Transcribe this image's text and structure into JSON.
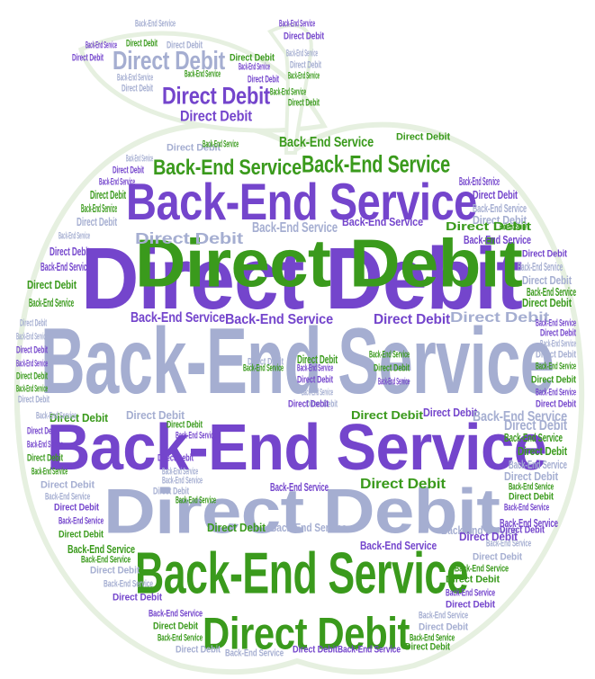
{
  "phrases": {
    "direct_debit": "Direct Debit",
    "back_end_service": "Back-End Service"
  },
  "colors": {
    "purple": "#7445cc",
    "green": "#3a9a1c",
    "steel": "#a5aed1",
    "apple_outline": "#e6f0e0"
  },
  "words": [
    {
      "t": "direct_debit",
      "c": "purple"
    },
    {
      "t": "back_end_service",
      "c": "purple"
    },
    {
      "t": "direct_debit",
      "c": "green"
    },
    {
      "t": "back_end_service",
      "c": "steel"
    },
    {
      "t": "direct_debit",
      "c": "steel"
    },
    {
      "t": "back_end_service",
      "c": "green"
    },
    {
      "t": "direct_debit",
      "c": "green"
    },
    {
      "t": "back_end_service",
      "c": "purple"
    },
    {
      "t": "direct_debit",
      "c": "purple"
    },
    {
      "t": "back_end_service",
      "c": "green"
    },
    {
      "t": "direct_debit",
      "c": "steel"
    },
    {
      "t": "back_end_service",
      "c": "green"
    },
    {
      "t": "direct_debit",
      "c": "purple"
    },
    {
      "t": "back_end_service",
      "c": "steel"
    },
    {
      "t": "direct_debit",
      "c": "green"
    },
    {
      "t": "back_end_service",
      "c": "purple"
    },
    {
      "t": "direct_debit",
      "c": "steel"
    },
    {
      "t": "back_end_service",
      "c": "purple"
    },
    {
      "t": "direct_debit",
      "c": "green"
    },
    {
      "t": "back_end_service",
      "c": "green"
    },
    {
      "t": "direct_debit",
      "c": "purple"
    },
    {
      "t": "back_end_service",
      "c": "steel"
    },
    {
      "t": "direct_debit",
      "c": "steel"
    },
    {
      "t": "back_end_service",
      "c": "purple"
    },
    {
      "t": "direct_debit",
      "c": "green"
    },
    {
      "t": "back_end_service",
      "c": "steel"
    },
    {
      "t": "direct_debit",
      "c": "purple"
    },
    {
      "t": "back_end_service",
      "c": "purple"
    },
    {
      "t": "direct_debit",
      "c": "steel"
    },
    {
      "t": "back_end_service",
      "c": "green"
    },
    {
      "t": "direct_debit",
      "c": "green"
    },
    {
      "t": "back_end_service",
      "c": "steel"
    },
    {
      "t": "direct_debit",
      "c": "purple"
    },
    {
      "t": "back_end_service",
      "c": "purple"
    },
    {
      "t": "direct_debit",
      "c": "steel"
    },
    {
      "t": "back_end_service",
      "c": "green"
    },
    {
      "t": "direct_debit",
      "c": "green"
    },
    {
      "t": "back_end_service",
      "c": "purple"
    },
    {
      "t": "direct_debit",
      "c": "purple"
    },
    {
      "t": "back_end_service",
      "c": "steel"
    },
    {
      "t": "direct_debit",
      "c": "steel"
    },
    {
      "t": "back_end_service",
      "c": "green"
    },
    {
      "t": "direct_debit",
      "c": "green"
    },
    {
      "t": "back_end_service",
      "c": "purple"
    },
    {
      "t": "direct_debit",
      "c": "purple"
    },
    {
      "t": "back_end_service",
      "c": "steel"
    },
    {
      "t": "direct_debit",
      "c": "steel"
    },
    {
      "t": "back_end_service",
      "c": "green"
    },
    {
      "t": "direct_debit",
      "c": "green"
    },
    {
      "t": "back_end_service",
      "c": "purple"
    },
    {
      "t": "direct_debit",
      "c": "purple"
    },
    {
      "t": "back_end_service",
      "c": "steel"
    },
    {
      "t": "direct_debit",
      "c": "steel"
    },
    {
      "t": "back_end_service",
      "c": "green"
    },
    {
      "t": "direct_debit",
      "c": "green"
    },
    {
      "t": "back_end_service",
      "c": "purple"
    },
    {
      "t": "direct_debit",
      "c": "purple"
    },
    {
      "t": "back_end_service",
      "c": "steel"
    },
    {
      "t": "direct_debit",
      "c": "steel"
    },
    {
      "t": "back_end_service",
      "c": "green"
    },
    {
      "t": "direct_debit",
      "c": "green"
    },
    {
      "t": "back_end_service",
      "c": "purple"
    },
    {
      "t": "direct_debit",
      "c": "purple"
    },
    {
      "t": "back_end_service",
      "c": "steel"
    },
    {
      "t": "direct_debit",
      "c": "steel"
    },
    {
      "t": "back_end_service",
      "c": "green"
    },
    {
      "t": "direct_debit",
      "c": "green"
    },
    {
      "t": "back_end_service",
      "c": "purple"
    },
    {
      "t": "direct_debit",
      "c": "purple"
    },
    {
      "t": "back_end_service",
      "c": "steel"
    },
    {
      "t": "direct_debit",
      "c": "steel"
    },
    {
      "t": "back_end_service",
      "c": "green"
    },
    {
      "t": "direct_debit",
      "c": "green"
    },
    {
      "t": "back_end_service",
      "c": "purple"
    },
    {
      "t": "direct_debit",
      "c": "purple"
    },
    {
      "t": "back_end_service",
      "c": "steel"
    },
    {
      "t": "direct_debit",
      "c": "steel"
    },
    {
      "t": "back_end_service",
      "c": "green"
    },
    {
      "t": "direct_debit",
      "c": "green"
    },
    {
      "t": "back_end_service",
      "c": "purple"
    },
    {
      "t": "direct_debit",
      "c": "purple"
    },
    {
      "t": "back_end_service",
      "c": "steel"
    },
    {
      "t": "direct_debit",
      "c": "steel"
    },
    {
      "t": "back_end_service",
      "c": "green"
    },
    {
      "t": "direct_debit",
      "c": "green"
    },
    {
      "t": "back_end_service",
      "c": "purple"
    },
    {
      "t": "direct_debit",
      "c": "purple"
    },
    {
      "t": "back_end_service",
      "c": "steel"
    },
    {
      "t": "direct_debit",
      "c": "steel"
    },
    {
      "t": "back_end_service",
      "c": "green"
    },
    {
      "t": "direct_debit",
      "c": "green"
    },
    {
      "t": "back_end_service",
      "c": "purple"
    },
    {
      "t": "direct_debit",
      "c": "purple"
    },
    {
      "t": "back_end_service",
      "c": "steel"
    },
    {
      "t": "direct_debit",
      "c": "steel"
    },
    {
      "t": "back_end_service",
      "c": "green"
    },
    {
      "t": "direct_debit",
      "c": "green"
    },
    {
      "t": "back_end_service",
      "c": "purple"
    },
    {
      "t": "direct_debit",
      "c": "purple"
    },
    {
      "t": "back_end_service",
      "c": "steel"
    },
    {
      "t": "direct_debit",
      "c": "steel"
    },
    {
      "t": "back_end_service",
      "c": "green"
    },
    {
      "t": "direct_debit",
      "c": "green"
    },
    {
      "t": "back_end_service",
      "c": "purple"
    },
    {
      "t": "direct_debit",
      "c": "purple"
    },
    {
      "t": "back_end_service",
      "c": "steel"
    },
    {
      "t": "direct_debit",
      "c": "steel"
    },
    {
      "t": "back_end_service",
      "c": "green"
    },
    {
      "t": "direct_debit",
      "c": "green"
    },
    {
      "t": "back_end_service",
      "c": "purple"
    },
    {
      "t": "direct_debit",
      "c": "purple"
    },
    {
      "t": "back_end_service",
      "c": "steel"
    },
    {
      "t": "direct_debit",
      "c": "steel"
    },
    {
      "t": "back_end_service",
      "c": "green"
    },
    {
      "t": "direct_debit",
      "c": "green"
    },
    {
      "t": "back_end_service",
      "c": "purple"
    },
    {
      "t": "direct_debit",
      "c": "purple"
    },
    {
      "t": "back_end_service",
      "c": "steel"
    },
    {
      "t": "direct_debit",
      "c": "steel"
    },
    {
      "t": "back_end_service",
      "c": "green"
    },
    {
      "t": "direct_debit",
      "c": "green"
    },
    {
      "t": "back_end_service",
      "c": "purple"
    },
    {
      "t": "direct_debit",
      "c": "purple"
    },
    {
      "t": "back_end_service",
      "c": "steel"
    },
    {
      "t": "direct_debit",
      "c": "steel"
    },
    {
      "t": "back_end_service",
      "c": "green"
    },
    {
      "t": "direct_debit",
      "c": "green"
    },
    {
      "t": "back_end_service",
      "c": "purple"
    },
    {
      "t": "direct_debit",
      "c": "purple"
    },
    {
      "t": "back_end_service",
      "c": "steel"
    },
    {
      "t": "direct_debit",
      "c": "steel"
    },
    {
      "t": "back_end_service",
      "c": "green"
    },
    {
      "t": "direct_debit",
      "c": "green"
    },
    {
      "t": "back_end_service",
      "c": "purple"
    },
    {
      "t": "direct_debit",
      "c": "purple"
    },
    {
      "t": "back_end_service",
      "c": "steel"
    },
    {
      "t": "direct_debit",
      "c": "steel"
    },
    {
      "t": "back_end_service",
      "c": "green"
    },
    {
      "t": "direct_debit",
      "c": "green"
    },
    {
      "t": "back_end_service",
      "c": "purple"
    },
    {
      "t": "direct_debit",
      "c": "purple"
    },
    {
      "t": "back_end_service",
      "c": "steel"
    },
    {
      "t": "direct_debit",
      "c": "steel"
    },
    {
      "t": "back_end_service",
      "c": "green"
    },
    {
      "t": "direct_debit",
      "c": "green"
    },
    {
      "t": "back_end_service",
      "c": "purple"
    },
    {
      "t": "direct_debit",
      "c": "purple"
    },
    {
      "t": "back_end_service",
      "c": "steel"
    },
    {
      "t": "direct_debit",
      "c": "steel"
    },
    {
      "t": "back_end_service",
      "c": "green"
    },
    {
      "t": "direct_debit",
      "c": "green"
    },
    {
      "t": "back_end_service",
      "c": "purple"
    },
    {
      "t": "direct_debit",
      "c": "purple"
    },
    {
      "t": "back_end_service",
      "c": "steel"
    },
    {
      "t": "direct_debit",
      "c": "steel"
    },
    {
      "t": "back_end_service",
      "c": "green"
    },
    {
      "t": "direct_debit",
      "c": "green"
    },
    {
      "t": "back_end_service",
      "c": "purple"
    },
    {
      "t": "direct_debit",
      "c": "purple"
    },
    {
      "t": "back_end_service",
      "c": "steel"
    },
    {
      "t": "direct_debit",
      "c": "steel"
    },
    {
      "t": "back_end_service",
      "c": "green"
    },
    {
      "t": "direct_debit",
      "c": "green"
    },
    {
      "t": "back_end_service",
      "c": "purple"
    }
  ]
}
